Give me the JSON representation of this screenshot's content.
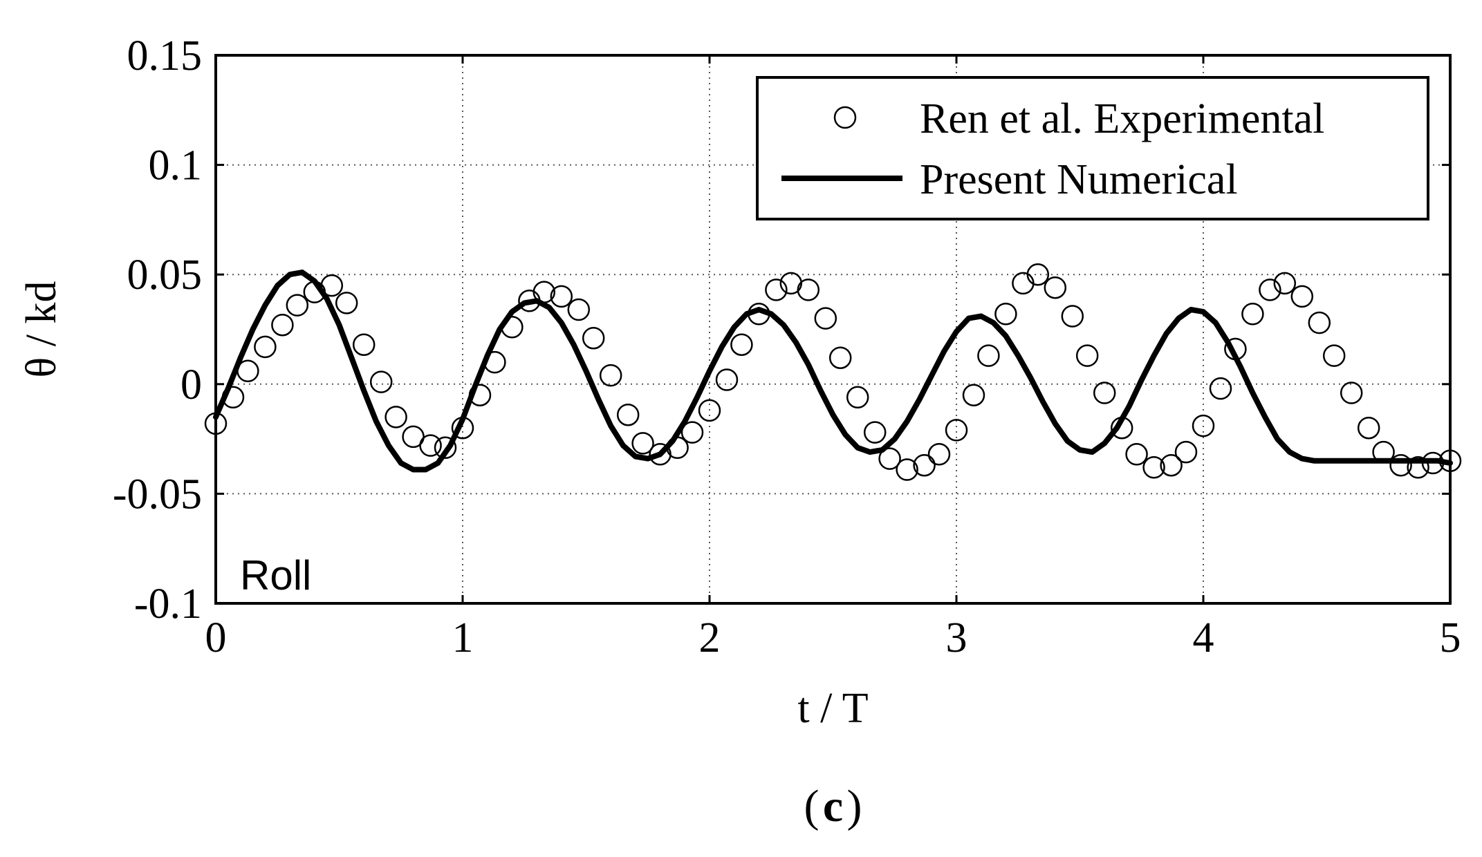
{
  "chart_data": {
    "type": "line",
    "xlabel": "t / T",
    "ylabel": "θ / kd",
    "xlim": [
      0,
      5
    ],
    "ylim": [
      -0.1,
      0.15
    ],
    "xticks": [
      "0",
      "1",
      "2",
      "3",
      "4",
      "5"
    ],
    "yticks": [
      "-0.1",
      "-0.05",
      "0",
      "0.05",
      "0.1",
      "0.15"
    ],
    "grid": true,
    "legend_position": "top-right",
    "annotation": "Roll",
    "caption": "c",
    "series": [
      {
        "name": "Ren et al. Experimental",
        "style": "open-circle-markers",
        "x": [
          0.0,
          0.07,
          0.13,
          0.2,
          0.27,
          0.33,
          0.4,
          0.47,
          0.53,
          0.6,
          0.67,
          0.73,
          0.8,
          0.87,
          0.93,
          1.0,
          1.07,
          1.13,
          1.2,
          1.27,
          1.33,
          1.4,
          1.47,
          1.53,
          1.6,
          1.67,
          1.73,
          1.8,
          1.87,
          1.93,
          2.0,
          2.07,
          2.13,
          2.2,
          2.27,
          2.33,
          2.4,
          2.47,
          2.53,
          2.6,
          2.67,
          2.73,
          2.8,
          2.87,
          2.93,
          3.0,
          3.07,
          3.13,
          3.2,
          3.27,
          3.33,
          3.4,
          3.47,
          3.53,
          3.6,
          3.67,
          3.73,
          3.8,
          3.87,
          3.93,
          4.0,
          4.07,
          4.13,
          4.2,
          4.27,
          4.33,
          4.4,
          4.47,
          4.53,
          4.6,
          4.67,
          4.73,
          4.8,
          4.87,
          4.93,
          5.0
        ],
        "y": [
          -0.018,
          -0.006,
          0.006,
          0.017,
          0.027,
          0.036,
          0.042,
          0.045,
          0.037,
          0.018,
          0.001,
          -0.015,
          -0.024,
          -0.028,
          -0.029,
          -0.02,
          -0.005,
          0.01,
          0.026,
          0.038,
          0.042,
          0.04,
          0.034,
          0.021,
          0.004,
          -0.014,
          -0.027,
          -0.032,
          -0.029,
          -0.022,
          -0.012,
          0.002,
          0.018,
          0.032,
          0.043,
          0.046,
          0.043,
          0.03,
          0.012,
          -0.006,
          -0.022,
          -0.034,
          -0.039,
          -0.037,
          -0.032,
          -0.021,
          -0.005,
          0.013,
          0.032,
          0.046,
          0.05,
          0.044,
          0.031,
          0.013,
          -0.004,
          -0.02,
          -0.032,
          -0.038,
          -0.037,
          -0.031,
          -0.019,
          -0.002,
          0.016,
          0.032,
          0.043,
          0.046,
          0.04,
          0.028,
          0.013,
          -0.004,
          -0.02,
          -0.031,
          -0.037,
          -0.038,
          -0.036,
          -0.035
        ]
      },
      {
        "name": "Present Numerical",
        "style": "solid-thick-line",
        "x": [
          0.0,
          0.05,
          0.1,
          0.15,
          0.2,
          0.25,
          0.3,
          0.35,
          0.4,
          0.45,
          0.5,
          0.55,
          0.6,
          0.65,
          0.7,
          0.75,
          0.8,
          0.85,
          0.9,
          0.95,
          1.0,
          1.05,
          1.1,
          1.15,
          1.2,
          1.25,
          1.3,
          1.35,
          1.4,
          1.45,
          1.5,
          1.55,
          1.6,
          1.65,
          1.7,
          1.75,
          1.8,
          1.85,
          1.9,
          1.95,
          2.0,
          2.05,
          2.1,
          2.15,
          2.2,
          2.25,
          2.3,
          2.35,
          2.4,
          2.45,
          2.5,
          2.55,
          2.6,
          2.65,
          2.7,
          2.75,
          2.8,
          2.85,
          2.9,
          2.95,
          3.0,
          3.05,
          3.1,
          3.15,
          3.2,
          3.25,
          3.3,
          3.35,
          3.4,
          3.45,
          3.5,
          3.55,
          3.6,
          3.65,
          3.7,
          3.75,
          3.8,
          3.85,
          3.9,
          3.95,
          4.0,
          4.05,
          4.1,
          4.15,
          4.2,
          4.25,
          4.3,
          4.35,
          4.4,
          4.45,
          4.5,
          4.55,
          4.6,
          4.65,
          4.7,
          4.75,
          4.8,
          4.85,
          4.9,
          4.95,
          5.0
        ],
        "y": [
          -0.015,
          -0.002,
          0.012,
          0.025,
          0.036,
          0.045,
          0.05,
          0.051,
          0.047,
          0.039,
          0.027,
          0.012,
          -0.003,
          -0.017,
          -0.028,
          -0.036,
          -0.039,
          -0.039,
          -0.036,
          -0.028,
          -0.016,
          -0.001,
          0.013,
          0.025,
          0.033,
          0.037,
          0.038,
          0.035,
          0.028,
          0.018,
          0.006,
          -0.007,
          -0.019,
          -0.028,
          -0.033,
          -0.034,
          -0.032,
          -0.026,
          -0.017,
          -0.006,
          0.006,
          0.017,
          0.026,
          0.032,
          0.034,
          0.032,
          0.027,
          0.019,
          0.009,
          -0.003,
          -0.014,
          -0.023,
          -0.029,
          -0.031,
          -0.03,
          -0.025,
          -0.017,
          -0.007,
          0.004,
          0.015,
          0.024,
          0.03,
          0.031,
          0.028,
          0.022,
          0.013,
          0.003,
          -0.008,
          -0.018,
          -0.026,
          -0.03,
          -0.031,
          -0.027,
          -0.02,
          -0.01,
          0.002,
          0.013,
          0.023,
          0.03,
          0.034,
          0.033,
          0.028,
          0.019,
          0.008,
          -0.004,
          -0.015,
          -0.025,
          -0.031,
          -0.034,
          -0.035,
          -0.035,
          -0.035,
          -0.035,
          -0.035,
          -0.035,
          -0.035,
          -0.035,
          -0.035,
          -0.035,
          -0.035,
          -0.036
        ]
      }
    ]
  }
}
